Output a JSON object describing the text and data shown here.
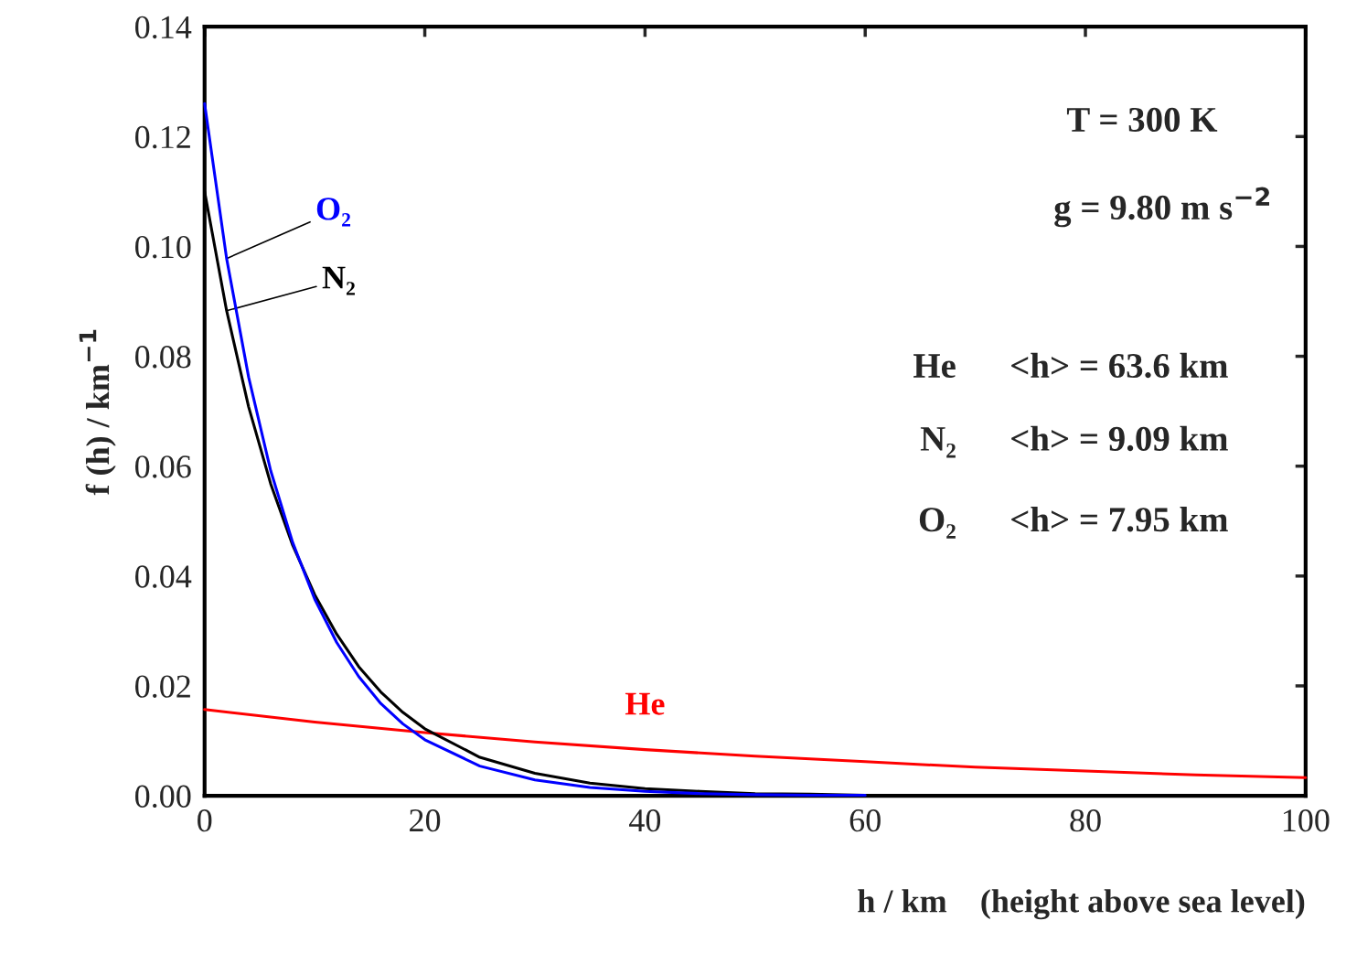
{
  "chart_data": {
    "type": "line",
    "xlabel": "h / km    (height above sea level)",
    "ylabel": "f (h) / km$^{−1}$",
    "xlim": [
      0,
      100
    ],
    "ylim": [
      0,
      0.14
    ],
    "xticks": [
      0,
      20,
      40,
      60,
      80,
      100
    ],
    "yticks": [
      {
        "value": 0,
        "label": "0.00"
      },
      {
        "value": 0.02,
        "label": "0.02"
      },
      {
        "value": 0.04,
        "label": "0.04"
      },
      {
        "value": 0.06,
        "label": "0.06"
      },
      {
        "value": 0.08,
        "label": "0.08"
      },
      {
        "value": 0.1,
        "label": "0.10"
      },
      {
        "value": 0.12,
        "label": "0.12"
      },
      {
        "value": 0.14,
        "label": "0.14"
      }
    ],
    "series": [
      {
        "name": "O₂",
        "color": "#0000ff",
        "x": [
          0,
          2,
          4,
          6,
          8,
          10,
          12,
          14,
          16,
          18,
          20,
          25,
          30,
          35,
          40,
          45,
          50,
          55,
          60
        ],
        "values": [
          0.126,
          0.0978,
          0.0762,
          0.0592,
          0.0461,
          0.0358,
          0.0279,
          0.0217,
          0.0168,
          0.0131,
          0.0102,
          0.0054,
          0.0029,
          0.0015,
          0.0008,
          0.0004,
          0.0002,
          0.0001,
          0.0001
        ]
      },
      {
        "name": "N₂",
        "color": "#000000",
        "x": [
          0,
          2,
          4,
          6,
          8,
          10,
          12,
          14,
          16,
          18,
          20,
          25,
          30,
          35,
          40,
          45,
          50,
          55,
          60
        ],
        "values": [
          0.11,
          0.0883,
          0.0708,
          0.0568,
          0.0456,
          0.0366,
          0.0294,
          0.0235,
          0.0189,
          0.0152,
          0.0122,
          0.007,
          0.0041,
          0.0023,
          0.0013,
          0.0008,
          0.0004,
          0.0003,
          0.0001
        ]
      },
      {
        "name": "He",
        "color": "#ff0000",
        "x": [
          0,
          10,
          20,
          30,
          40,
          50,
          60,
          70,
          80,
          90,
          100
        ],
        "values": [
          0.0157,
          0.0134,
          0.0115,
          0.0098,
          0.0084,
          0.0072,
          0.0062,
          0.0052,
          0.0045,
          0.0038,
          0.0033
        ]
      }
    ],
    "annotations": [
      "T = 300 K",
      "g = 9.80 m s$^{−2}$",
      "He      <h> = 63.6 km",
      "N₂      <h> = 9.09 km",
      "O₂      <h> = 7.95 km"
    ],
    "grid": false,
    "legend": "top left",
    "line_style": "solid",
    "marker": "none"
  }
}
